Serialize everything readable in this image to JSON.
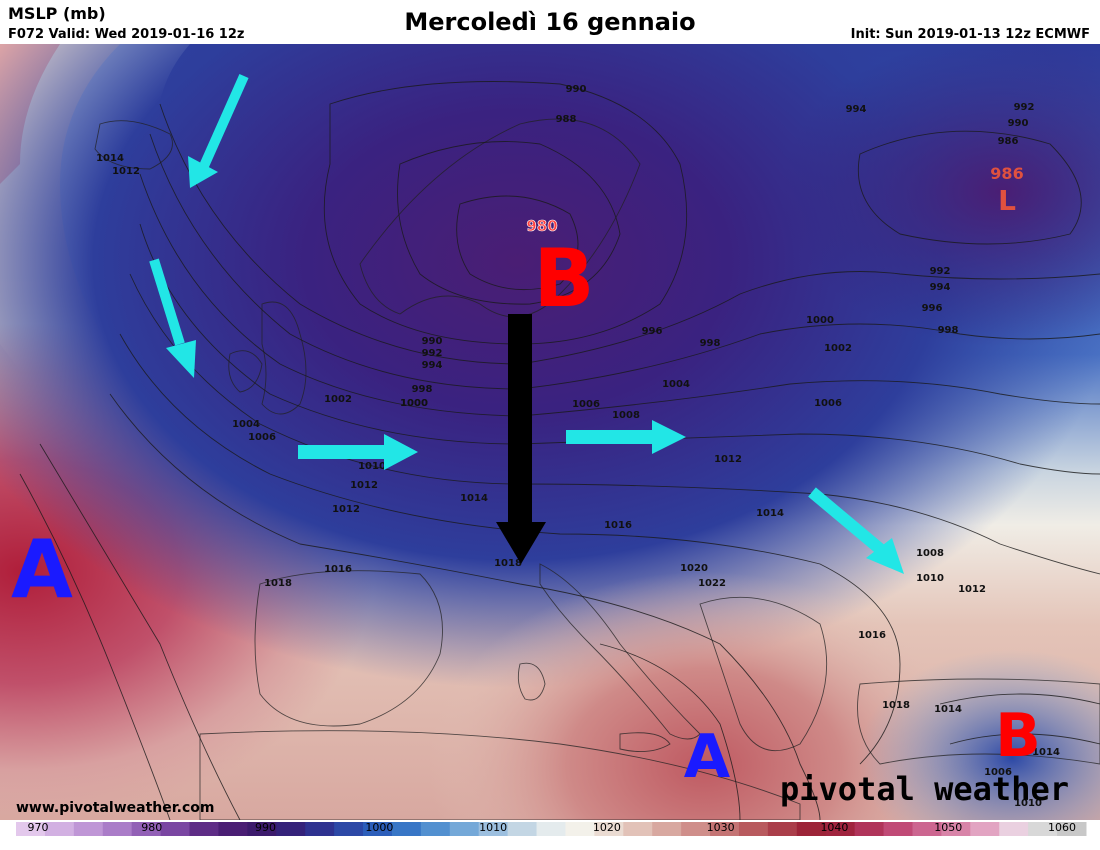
{
  "header": {
    "product": "MSLP (mb)",
    "valid": "F072 Valid: Wed 2019-01-16 12z",
    "title": "Mercoledì 16 gennaio",
    "init": "Init: Sun 2019-01-13 12z ECMWF"
  },
  "watermark": {
    "url": "www.pivotalweather.com",
    "brand": "pivotal weather"
  },
  "pressure_centers": [
    {
      "id": "low-scandinavia",
      "label": "B",
      "value": "980",
      "color": "#ff0000"
    },
    {
      "id": "low-russia",
      "label": "L",
      "value": "986",
      "color": "#e0513f"
    },
    {
      "id": "high-atlantic",
      "label": "A",
      "value": "",
      "color": "#1a1aff"
    },
    {
      "id": "high-mediterranean",
      "label": "A",
      "value": "",
      "color": "#1a1aff"
    },
    {
      "id": "low-turkey",
      "label": "B",
      "value": "",
      "color": "#ff0000"
    }
  ],
  "isobar_labels": [
    "990",
    "988",
    "994",
    "992",
    "990",
    "986",
    "1014",
    "1012",
    "980",
    "992",
    "994",
    "996",
    "998",
    "990",
    "992",
    "994",
    "998",
    "1000",
    "1000",
    "1002",
    "996",
    "998",
    "1004",
    "1002",
    "1000",
    "1004",
    "1006",
    "1006",
    "1008",
    "1010",
    "1012",
    "1006",
    "1008",
    "1008",
    "1010",
    "1012",
    "1014",
    "1012",
    "1014",
    "1016",
    "1016",
    "1018",
    "1018",
    "1020",
    "1022",
    "1014",
    "1016",
    "1012",
    "1008",
    "1010",
    "1018",
    "1014",
    "1006",
    "1010"
  ],
  "colorbar": {
    "ticks": [
      "970",
      "980",
      "990",
      "1000",
      "1010",
      "1020",
      "1030",
      "1040",
      "1050",
      "1060"
    ],
    "colors": [
      "#e3c8ec",
      "#d2b0e2",
      "#bf96d6",
      "#aa7cc8",
      "#9260b6",
      "#7a46a2",
      "#5e2c86",
      "#4a1e74",
      "#3c1a6c",
      "#34227a",
      "#2e3290",
      "#2c48a6",
      "#2c5eba",
      "#3876c6",
      "#5290d0",
      "#74a8d8",
      "#9cbfdf",
      "#c3d6e4",
      "#e4ebed",
      "#f3f1ea",
      "#eadbd2",
      "#e2c2b8",
      "#d8a8a0",
      "#cf8e8a",
      "#c47474",
      "#b85a5e",
      "#aa3e4a",
      "#9c2438",
      "#a0243e",
      "#b0345a",
      "#c04a76",
      "#cc6690",
      "#d884a8",
      "#e2a4c2",
      "#ead0e0",
      "#d8d8d8",
      "#c8c8c8"
    ]
  },
  "arrows": {
    "cyan_color": "#22e6e6",
    "black_color": "#000000"
  }
}
